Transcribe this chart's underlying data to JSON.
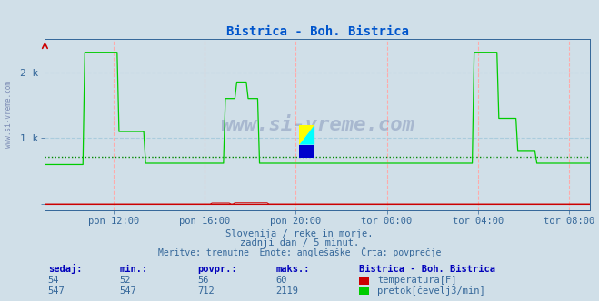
{
  "title": "Bistrica - Boh. Bistrica",
  "title_color": "#0055cc",
  "bg_color": "#d0dfe8",
  "plot_bg_color": "#d0dfe8",
  "xlabel_ticks": [
    "pon 12:00",
    "pon 16:00",
    "pon 20:00",
    "tor 00:00",
    "tor 04:00",
    "tor 08:00"
  ],
  "ytick_labels": [
    "",
    "1 k",
    "2 k"
  ],
  "ymax": 2500,
  "ymin": -100,
  "avg_flow": 712,
  "avg_temp": 56,
  "max_flow": 2119,
  "max_temp": 60,
  "min_flow": 547,
  "min_temp": 52,
  "cur_flow": 547,
  "cur_temp": 54,
  "temp_color": "#cc0000",
  "flow_color": "#00cc00",
  "avg_line_color": "#008800",
  "grid_v_color": "#ffaaaa",
  "grid_h_color": "#aaccdd",
  "subtitle1": "Slovenija / reke in morje.",
  "subtitle2": "zadnji dan / 5 minut.",
  "subtitle3": "Meritve: trenutne  Enote: anglešaške  Črta: povprečje",
  "subtitle_color": "#336699",
  "table_header_color": "#0000bb",
  "table_value_color": "#336699",
  "watermark_color": "#334488",
  "watermark_alpha": 0.25,
  "n_points": 288,
  "spine_color": "#336699",
  "tick_color": "#cc0000"
}
